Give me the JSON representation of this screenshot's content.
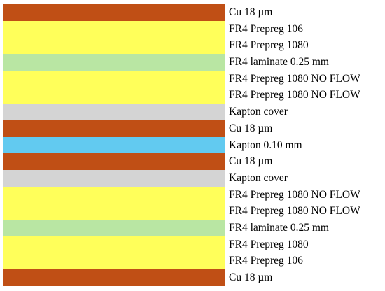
{
  "materials": {
    "copper": "#c04f15",
    "prepreg": "#ffff5a",
    "laminate": "#b9e6a3",
    "kapton_cover": "#d4d4d4",
    "kapton_core": "#62caf0"
  },
  "layers": [
    {
      "label": "Cu 18 µm",
      "material": "copper"
    },
    {
      "label": "FR4 Prepreg 106",
      "material": "prepreg"
    },
    {
      "label": "FR4 Prepreg 1080",
      "material": "prepreg"
    },
    {
      "label": "FR4 laminate 0.25 mm",
      "material": "laminate"
    },
    {
      "label": "FR4 Prepreg 1080 NO FLOW",
      "material": "prepreg"
    },
    {
      "label": "FR4 Prepreg 1080 NO FLOW",
      "material": "prepreg"
    },
    {
      "label": "Kapton cover",
      "material": "kapton_cover"
    },
    {
      "label": "Cu 18 µm",
      "material": "copper"
    },
    {
      "label": "Kapton 0.10 mm",
      "material": "kapton_core"
    },
    {
      "label": "Cu 18 µm",
      "material": "copper"
    },
    {
      "label": "Kapton cover",
      "material": "kapton_cover"
    },
    {
      "label": "FR4 Prepreg 1080 NO FLOW",
      "material": "prepreg"
    },
    {
      "label": "FR4 Prepreg 1080 NO FLOW",
      "material": "prepreg"
    },
    {
      "label": "FR4 laminate 0.25 mm",
      "material": "laminate"
    },
    {
      "label": "FR4 Prepreg 1080",
      "material": "prepreg"
    },
    {
      "label": "FR4 Prepreg 106",
      "material": "prepreg"
    },
    {
      "label": "Cu 18 µm",
      "material": "copper"
    }
  ]
}
